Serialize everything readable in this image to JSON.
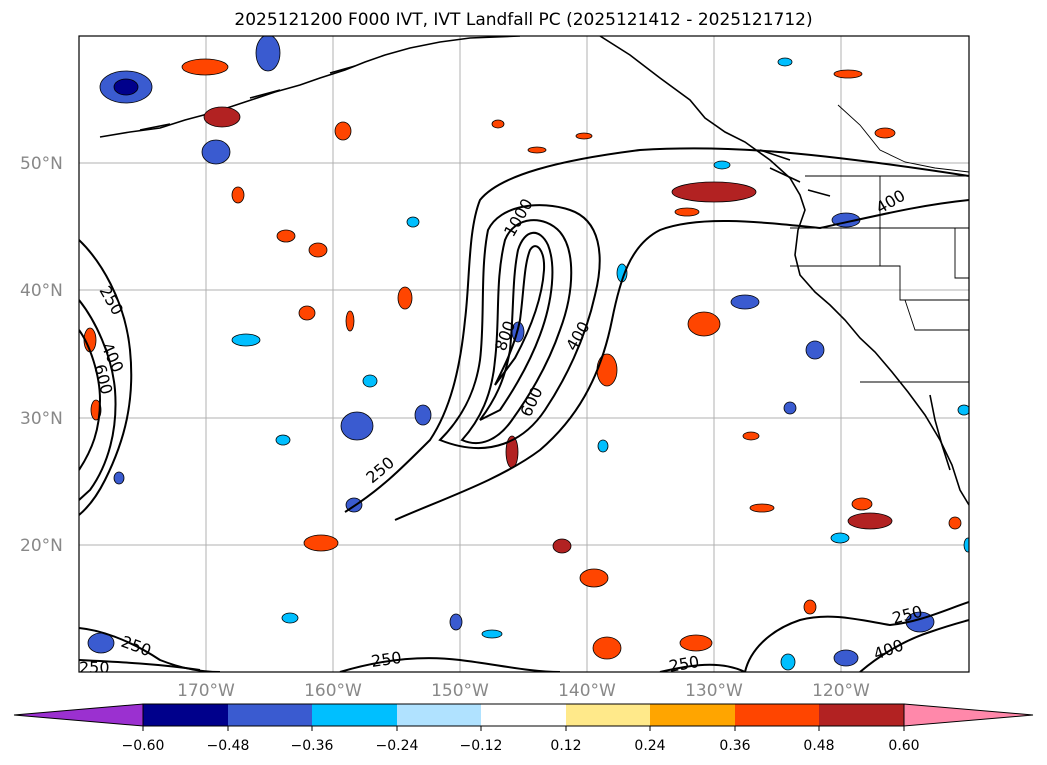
{
  "title": "2025121200 F000 IVT, IVT Landfall PC (2025121412 - 2025121712)",
  "latitude_labels": [
    "50°N",
    "40°N",
    "30°N",
    "20°N"
  ],
  "longitude_labels": [
    "170°W",
    "160°W",
    "150°W",
    "140°W",
    "130°W",
    "120°W"
  ],
  "ivt_contour_labels": [
    "1000",
    "800",
    "600",
    "400",
    "250",
    "250",
    "400",
    "600",
    "250",
    "250",
    "250",
    "250",
    "400",
    "250",
    "400"
  ],
  "colorbar": {
    "ticks": [
      "−0.60",
      "−0.48",
      "−0.36",
      "−0.24",
      "−0.12",
      "0.12",
      "0.24",
      "0.36",
      "0.48",
      "0.60"
    ],
    "colors": [
      "#9b30d0",
      "#00008b",
      "#3a5bd0",
      "#00bfff",
      "#b0e2ff",
      "#ffffff",
      "#ffe98a",
      "#ffa500",
      "#ff4500",
      "#b22222",
      "#ff88aa"
    ]
  }
}
